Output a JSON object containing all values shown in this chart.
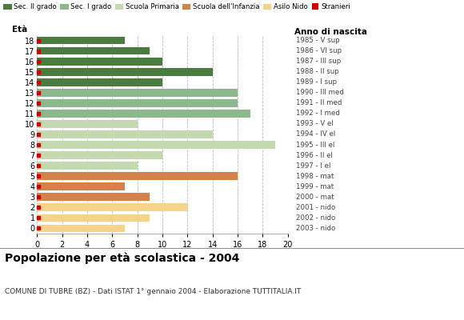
{
  "ages": [
    18,
    17,
    16,
    15,
    14,
    13,
    12,
    11,
    10,
    9,
    8,
    7,
    6,
    5,
    4,
    3,
    2,
    1,
    0
  ],
  "anno_nascita": [
    "1985 - V sup",
    "1986 - VI sup",
    "1987 - III sup",
    "1988 - II sup",
    "1989 - I sup",
    "1990 - III med",
    "1991 - II med",
    "1992 - I med",
    "1993 - V el",
    "1994 - IV el",
    "1995 - III el",
    "1996 - II el",
    "1997 - I el",
    "1998 - mat",
    "1999 - mat",
    "2000 - mat",
    "2001 - nido",
    "2002 - nido",
    "2003 - nido"
  ],
  "values": [
    7,
    9,
    10,
    14,
    10,
    16,
    16,
    17,
    8,
    14,
    19,
    10,
    8,
    16,
    7,
    9,
    12,
    9,
    7
  ],
  "bar_colors": [
    "#4a7c3f",
    "#4a7c3f",
    "#4a7c3f",
    "#4a7c3f",
    "#4a7c3f",
    "#8ab88a",
    "#8ab88a",
    "#8ab88a",
    "#c5d9b0",
    "#c5d9b0",
    "#c5d9b0",
    "#c5d9b0",
    "#c5d9b0",
    "#d2824a",
    "#d2824a",
    "#d2824a",
    "#f5d48a",
    "#f5d48a",
    "#f5d48a"
  ],
  "stranger_marker_color": "#cc0000",
  "legend_labels": [
    "Sec. II grado",
    "Sec. I grado",
    "Scuola Primaria",
    "Scuola dell'Infanzia",
    "Asilo Nido",
    "Stranieri"
  ],
  "legend_colors": [
    "#4a7c3f",
    "#8ab88a",
    "#c5d9b0",
    "#d2824a",
    "#f5d48a",
    "#cc0000"
  ],
  "title": "Popolazione per età scolastica - 2004",
  "subtitle": "COMUNE DI TUBRE (BZ) - Dati ISTAT 1° gennaio 2004 - Elaborazione TUTTITALIA.IT",
  "xlabel_eta": "Età",
  "xlabel_anno": "Anno di nascita",
  "xlim": [
    0,
    20
  ],
  "xticks": [
    0,
    2,
    4,
    6,
    8,
    10,
    12,
    14,
    16,
    18,
    20
  ],
  "bg_color": "#ffffff",
  "grid_color": "#bbbbbb",
  "bar_height": 0.75
}
